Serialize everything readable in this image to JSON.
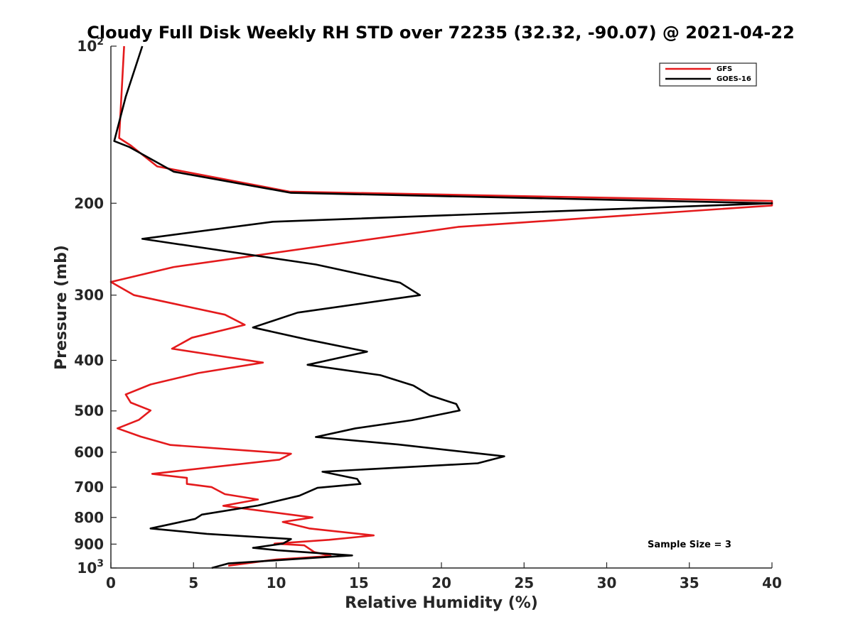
{
  "chart_data": {
    "type": "line",
    "title": "Cloudy Full Disk Weekly RH STD over 72235 (32.32, -90.07) @ 2021-04-22",
    "xlabel": "Relative Humidity (%)",
    "ylabel": "Pressure (mb)",
    "xlim": [
      0,
      40
    ],
    "ylim": [
      100,
      1000
    ],
    "yscale": "log",
    "yreversed": true,
    "grid": false,
    "x_ticks": [
      {
        "value": 0,
        "label": "0"
      },
      {
        "value": 5,
        "label": "5"
      },
      {
        "value": 10,
        "label": "10"
      },
      {
        "value": 15,
        "label": "15"
      },
      {
        "value": 20,
        "label": "20"
      },
      {
        "value": 25,
        "label": "25"
      },
      {
        "value": 30,
        "label": "30"
      },
      {
        "value": 35,
        "label": "35"
      },
      {
        "value": 40,
        "label": "40"
      }
    ],
    "y_ticks": [
      {
        "value": 100,
        "base": "10",
        "exp": "2"
      },
      {
        "value": 200,
        "label": "200"
      },
      {
        "value": 300,
        "label": "300"
      },
      {
        "value": 400,
        "label": "400"
      },
      {
        "value": 500,
        "label": "500"
      },
      {
        "value": 600,
        "label": "600"
      },
      {
        "value": 700,
        "label": "700"
      },
      {
        "value": 800,
        "label": "800"
      },
      {
        "value": 900,
        "label": "900"
      },
      {
        "value": 1000,
        "base": "10",
        "exp": "3"
      }
    ],
    "legend_position": "top-right",
    "annotation": "Sample Size = 3",
    "series": [
      {
        "name": "GFS",
        "color": "#e41a1c",
        "points": [
          [
            0.8,
            100
          ],
          [
            0.5,
            150
          ],
          [
            1.2,
            155
          ],
          [
            2.8,
            170
          ],
          [
            10.8,
            190
          ],
          [
            40,
            198
          ],
          [
            40,
            202
          ],
          [
            21,
            222
          ],
          [
            3.8,
            265
          ],
          [
            0,
            283
          ],
          [
            1.4,
            300
          ],
          [
            6.9,
            327
          ],
          [
            8.1,
            342
          ],
          [
            4.9,
            362
          ],
          [
            3.7,
            380
          ],
          [
            9.2,
            404
          ],
          [
            5.3,
            423
          ],
          [
            2.4,
            445
          ],
          [
            0.9,
            465
          ],
          [
            1.2,
            482
          ],
          [
            2.4,
            499
          ],
          [
            1.7,
            520
          ],
          [
            0.4,
            540
          ],
          [
            1.8,
            560
          ],
          [
            3.6,
            581
          ],
          [
            10.9,
            604
          ],
          [
            10.2,
            620
          ],
          [
            2.5,
            660
          ],
          [
            4.6,
            672
          ],
          [
            4.6,
            690
          ],
          [
            6.1,
            700
          ],
          [
            6.9,
            722
          ],
          [
            8.9,
            739
          ],
          [
            6.8,
            760
          ],
          [
            12.2,
            800
          ],
          [
            10.4,
            816
          ],
          [
            12.0,
            840
          ],
          [
            15.9,
            866
          ],
          [
            13.2,
            883
          ],
          [
            9.9,
            898
          ],
          [
            11.7,
            905
          ],
          [
            12.3,
            932
          ],
          [
            13.3,
            948
          ],
          [
            10.0,
            963
          ],
          [
            7.1,
            990
          ]
        ]
      },
      {
        "name": "GOES-16",
        "color": "#000000",
        "points": [
          [
            1.9,
            100
          ],
          [
            0.9,
            125
          ],
          [
            0.2,
            152
          ],
          [
            1.1,
            156
          ],
          [
            3.8,
            174
          ],
          [
            10.9,
            191
          ],
          [
            40,
            200
          ],
          [
            9.8,
            217
          ],
          [
            1.9,
            234
          ],
          [
            12.4,
            262
          ],
          [
            17.5,
            284
          ],
          [
            18.7,
            300
          ],
          [
            11.3,
            324
          ],
          [
            8.6,
            346
          ],
          [
            11.9,
            365
          ],
          [
            15.5,
            385
          ],
          [
            11.9,
            408
          ],
          [
            16.3,
            427
          ],
          [
            18.3,
            447
          ],
          [
            19.3,
            467
          ],
          [
            20.9,
            485
          ],
          [
            21.1,
            499
          ],
          [
            18.2,
            521
          ],
          [
            14.8,
            540
          ],
          [
            12.4,
            561
          ],
          [
            17.4,
            580
          ],
          [
            23.8,
            611
          ],
          [
            22.2,
            630
          ],
          [
            12.8,
            654
          ],
          [
            14.9,
            675
          ],
          [
            15.1,
            690
          ],
          [
            12.5,
            702
          ],
          [
            11.4,
            727
          ],
          [
            8.9,
            759
          ],
          [
            5.5,
            790
          ],
          [
            5.1,
            805
          ],
          [
            2.4,
            840
          ],
          [
            5.8,
            860
          ],
          [
            10.9,
            880
          ],
          [
            10.4,
            898
          ],
          [
            8.6,
            915
          ],
          [
            10.1,
            925
          ],
          [
            14.6,
            946
          ],
          [
            12.5,
            955
          ],
          [
            7.1,
            980
          ],
          [
            6.1,
            1000
          ]
        ]
      }
    ]
  }
}
